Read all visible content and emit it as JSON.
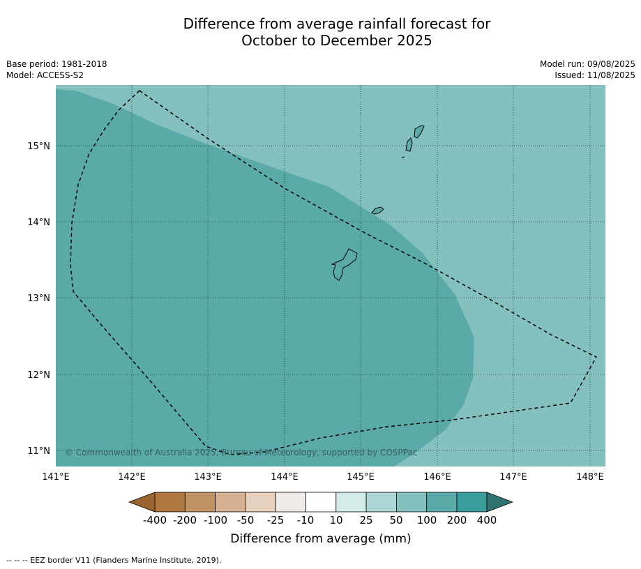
{
  "title_line1": "Difference from average rainfall forecast for",
  "title_line2": "October to December 2025",
  "base_period": "Base period: 1981-2018",
  "model": "Model: ACCESS-S2",
  "model_run": "Model run: 09/08/2025",
  "issued": "Issued: 11/08/2025",
  "copyright": "© Commonwealth of Australia 2025, Bureau of Meteorology, supported by COSPPac",
  "colorbar_label": "Difference from average (mm)",
  "footer": "--  --  -- EEZ border V11 (Flanders Marine Institute, 2019).",
  "map": {
    "lon_labels": [
      "141°E",
      "142°E",
      "143°E",
      "144°E",
      "145°E",
      "146°E",
      "147°E",
      "148°E"
    ],
    "lat_labels": [
      "15°N",
      "14°N",
      "13°N",
      "12°N",
      "11°N"
    ],
    "lon_range": [
      141,
      148.2
    ],
    "lat_range": [
      10.8,
      15.8
    ],
    "zones": [
      {
        "category": "50 to 100",
        "color": "#84c0be"
      },
      {
        "category": "100 to 200",
        "color": "#5aaaa9"
      }
    ]
  },
  "colorbar": {
    "ticks": [
      "-400",
      "-200",
      "-100",
      "-50",
      "-25",
      "-10",
      "10",
      "25",
      "50",
      "100",
      "200",
      "400"
    ],
    "colors": [
      "#9c6430",
      "#b07840",
      "#bf9266",
      "#d6b192",
      "#e8d0bf",
      "#f0ebe8",
      "#ffffff",
      "#d4ebe9",
      "#acd6d5",
      "#84c0be",
      "#5aaaa9",
      "#3a9c9b",
      "#307472"
    ]
  }
}
